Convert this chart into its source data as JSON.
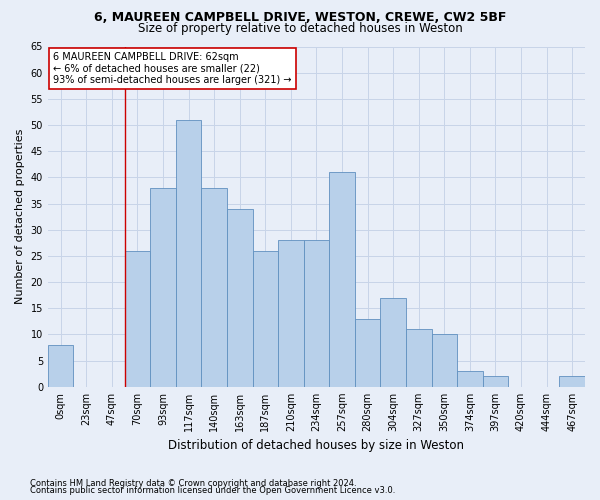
{
  "title1": "6, MAUREEN CAMPBELL DRIVE, WESTON, CREWE, CW2 5BF",
  "title2": "Size of property relative to detached houses in Weston",
  "xlabel": "Distribution of detached houses by size in Weston",
  "ylabel": "Number of detached properties",
  "footnote1": "Contains HM Land Registry data © Crown copyright and database right 2024.",
  "footnote2": "Contains public sector information licensed under the Open Government Licence v3.0.",
  "bar_labels": [
    "0sqm",
    "23sqm",
    "47sqm",
    "70sqm",
    "93sqm",
    "117sqm",
    "140sqm",
    "163sqm",
    "187sqm",
    "210sqm",
    "234sqm",
    "257sqm",
    "280sqm",
    "304sqm",
    "327sqm",
    "350sqm",
    "374sqm",
    "397sqm",
    "420sqm",
    "444sqm",
    "467sqm"
  ],
  "bar_values": [
    8,
    0,
    0,
    26,
    38,
    51,
    38,
    34,
    26,
    28,
    28,
    41,
    13,
    17,
    11,
    10,
    3,
    2,
    0,
    0,
    2
  ],
  "bar_color": "#b8d0ea",
  "bar_edge_color": "#6090c0",
  "annotation_line1": "6 MAUREEN CAMPBELL DRIVE: 62sqm",
  "annotation_line2": "← 6% of detached houses are smaller (22)",
  "annotation_line3": "93% of semi-detached houses are larger (321) →",
  "vline_x": 3.0,
  "vline_color": "#cc0000",
  "annotation_box_color": "white",
  "annotation_box_edge": "#cc0000",
  "grid_color": "#c8d4e8",
  "ylim": [
    0,
    65
  ],
  "yticks": [
    0,
    5,
    10,
    15,
    20,
    25,
    30,
    35,
    40,
    45,
    50,
    55,
    60,
    65
  ],
  "bg_color": "#e8eef8",
  "bar_width": 1.0,
  "title1_fontsize": 9,
  "title2_fontsize": 8.5,
  "ylabel_fontsize": 8,
  "xlabel_fontsize": 8.5,
  "tick_fontsize": 7,
  "footnote_fontsize": 6
}
